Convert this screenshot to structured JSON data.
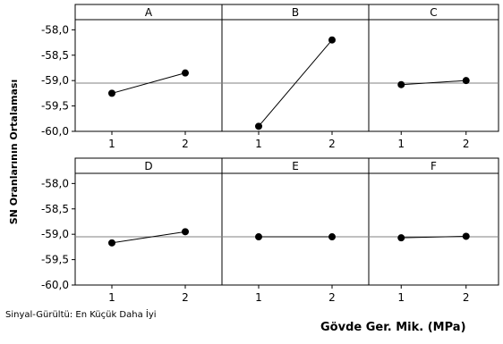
{
  "chart_data": {
    "type": "line",
    "ylabel": "SN Oranlarının Ortalaması",
    "xlabel": "Gövde Ger. Mik. (MPa)",
    "footnote": "Sinyal-Gürültü: En Küçük Daha İyi",
    "ylim": [
      -60.0,
      -57.8
    ],
    "yticks": [
      -58.0,
      -58.5,
      -59.0,
      -59.5,
      -60.0
    ],
    "ytick_labels": [
      "-58,0",
      "-58,5",
      "-59,0",
      "-59,5",
      "-60,0"
    ],
    "xticks": [
      "1",
      "2"
    ],
    "reference_line": -59.05,
    "panels": [
      {
        "name": "A",
        "x": [
          "1",
          "2"
        ],
        "y": [
          -59.25,
          -58.85
        ]
      },
      {
        "name": "B",
        "x": [
          "1",
          "2"
        ],
        "y": [
          -59.9,
          -58.2
        ]
      },
      {
        "name": "C",
        "x": [
          "1",
          "2"
        ],
        "y": [
          -59.08,
          -59.0
        ]
      },
      {
        "name": "D",
        "x": [
          "1",
          "2"
        ],
        "y": [
          -59.17,
          -58.95
        ]
      },
      {
        "name": "E",
        "x": [
          "1",
          "2"
        ],
        "y": [
          -59.05,
          -59.05
        ]
      },
      {
        "name": "F",
        "x": [
          "1",
          "2"
        ],
        "y": [
          -59.07,
          -59.04
        ]
      }
    ]
  }
}
